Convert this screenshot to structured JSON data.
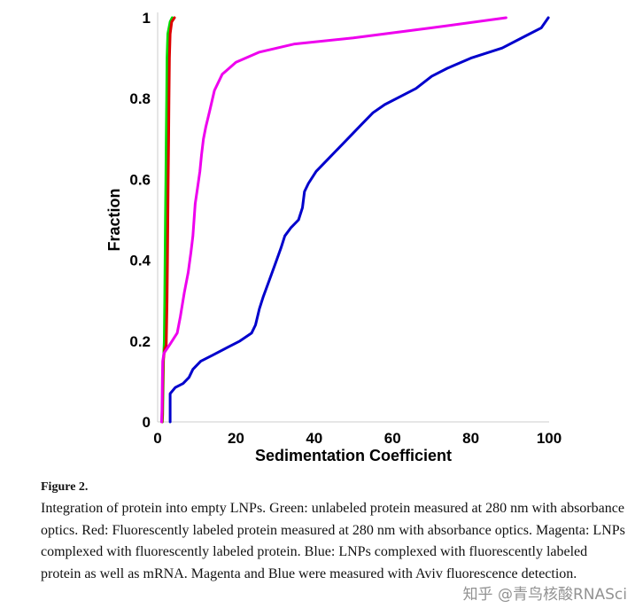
{
  "chart_data": {
    "type": "line",
    "xlabel": "Sedimentation Coefficient",
    "ylabel": "Fraction",
    "xlim": [
      0,
      100
    ],
    "ylim": [
      0,
      1
    ],
    "x_ticks": [
      "0",
      "20",
      "40",
      "60",
      "80",
      "100"
    ],
    "y_ticks": [
      "0",
      "0.2",
      "0.4",
      "0.6",
      "0.8",
      "1"
    ],
    "x_tick_values": [
      0,
      20,
      40,
      60,
      80,
      100
    ],
    "y_tick_values": [
      0,
      0.2,
      0.4,
      0.6,
      0.8,
      1
    ],
    "grid": false,
    "series": [
      {
        "color": "#00dd00",
        "points": [
          [
            1.2,
            0
          ],
          [
            1.3,
            0.02
          ],
          [
            1.5,
            0.15
          ],
          [
            1.7,
            0.2
          ],
          [
            1.8,
            0.3
          ],
          [
            1.9,
            0.4
          ],
          [
            2.0,
            0.5
          ],
          [
            2.1,
            0.6
          ],
          [
            2.2,
            0.7
          ],
          [
            2.3,
            0.8
          ],
          [
            2.4,
            0.9
          ],
          [
            2.6,
            0.96
          ],
          [
            3.2,
            0.99
          ],
          [
            3.7,
            1.0
          ]
        ]
      },
      {
        "color": "#dd0000",
        "points": [
          [
            1.1,
            0
          ],
          [
            1.2,
            0.02
          ],
          [
            1.4,
            0.15
          ],
          [
            1.8,
            0.18
          ],
          [
            2.2,
            0.19
          ],
          [
            2.4,
            0.3
          ],
          [
            2.5,
            0.4
          ],
          [
            2.6,
            0.5
          ],
          [
            2.7,
            0.6
          ],
          [
            2.8,
            0.7
          ],
          [
            2.9,
            0.8
          ],
          [
            3.0,
            0.9
          ],
          [
            3.2,
            0.96
          ],
          [
            3.6,
            0.99
          ],
          [
            4.3,
            1.0
          ]
        ]
      },
      {
        "color": "#ee00ee",
        "points": [
          [
            1.0,
            0
          ],
          [
            1.1,
            0.03
          ],
          [
            1.2,
            0.1
          ],
          [
            1.3,
            0.15
          ],
          [
            1.6,
            0.17
          ],
          [
            3.0,
            0.19
          ],
          [
            5.0,
            0.22
          ],
          [
            5.8,
            0.26
          ],
          [
            6.8,
            0.32
          ],
          [
            7.8,
            0.37
          ],
          [
            8.5,
            0.42
          ],
          [
            9.0,
            0.46
          ],
          [
            9.3,
            0.5
          ],
          [
            9.6,
            0.54
          ],
          [
            10.2,
            0.58
          ],
          [
            10.8,
            0.62
          ],
          [
            11.2,
            0.66
          ],
          [
            11.7,
            0.7
          ],
          [
            12.3,
            0.73
          ],
          [
            13.3,
            0.77
          ],
          [
            14.5,
            0.82
          ],
          [
            16.5,
            0.86
          ],
          [
            20.0,
            0.89
          ],
          [
            26.0,
            0.915
          ],
          [
            35.0,
            0.935
          ],
          [
            50.0,
            0.95
          ],
          [
            70.0,
            0.975
          ],
          [
            89.0,
            1.0
          ]
        ]
      },
      {
        "color": "#0000cc",
        "points": [
          [
            3.2,
            0
          ],
          [
            3.2,
            0.07
          ],
          [
            4.5,
            0.085
          ],
          [
            6.5,
            0.095
          ],
          [
            8.0,
            0.11
          ],
          [
            9.0,
            0.13
          ],
          [
            11.0,
            0.15
          ],
          [
            14.0,
            0.165
          ],
          [
            18.0,
            0.185
          ],
          [
            21.0,
            0.2
          ],
          [
            24.0,
            0.22
          ],
          [
            25.0,
            0.24
          ],
          [
            26.0,
            0.28
          ],
          [
            27.0,
            0.31
          ],
          [
            28.5,
            0.35
          ],
          [
            30.0,
            0.39
          ],
          [
            31.5,
            0.43
          ],
          [
            32.5,
            0.46
          ],
          [
            34.0,
            0.48
          ],
          [
            36.0,
            0.5
          ],
          [
            37.0,
            0.53
          ],
          [
            37.5,
            0.57
          ],
          [
            38.5,
            0.59
          ],
          [
            40.5,
            0.62
          ],
          [
            44.0,
            0.655
          ],
          [
            48.0,
            0.695
          ],
          [
            52.0,
            0.735
          ],
          [
            55.0,
            0.765
          ],
          [
            58.0,
            0.785
          ],
          [
            62.0,
            0.805
          ],
          [
            66.0,
            0.825
          ],
          [
            70.0,
            0.855
          ],
          [
            74.0,
            0.875
          ],
          [
            80.0,
            0.9
          ],
          [
            88.0,
            0.925
          ],
          [
            94.0,
            0.955
          ],
          [
            98.0,
            0.975
          ],
          [
            99.8,
            1.0
          ]
        ]
      }
    ]
  },
  "caption": {
    "heading": "Figure 2.",
    "text": "Integration of protein into empty LNPs. Green: unlabeled protein measured at 280 nm with absorbance optics. Red: Fluorescently labeled protein measured at 280 nm with absorbance optics. Magenta: LNPs complexed with fluorescently labeled protein. Blue: LNPs complexed with fluorescently labeled protein as well as mRNA. Magenta and Blue were measured with Aviv fluorescence detection."
  },
  "watermark": "知乎 @青鸟核酸RNASci"
}
